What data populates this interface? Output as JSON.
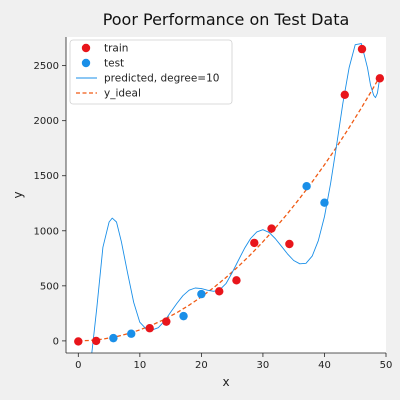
{
  "chart_data": {
    "type": "scatter",
    "title": "Poor Performance on Test Data",
    "xlabel": "x",
    "ylabel": "y",
    "xlim": [
      -2,
      50
    ],
    "ylim": [
      -110,
      2760
    ],
    "x_ticks": [
      0,
      10,
      20,
      30,
      40,
      50
    ],
    "y_ticks": [
      0,
      500,
      1000,
      1500,
      2000,
      2500
    ],
    "grid": false,
    "legend_position": "top-left",
    "series": [
      {
        "name": "train",
        "kind": "scatter",
        "color": "#e8151b",
        "x": [
          0,
          2.9,
          11.6,
          14.3,
          22.9,
          25.7,
          28.6,
          31.4,
          34.3,
          43.3,
          46.1,
          49.0
        ],
        "y": [
          -5,
          0,
          115,
          175,
          450,
          550,
          890,
          1020,
          880,
          2235,
          2650,
          2385
        ]
      },
      {
        "name": "test",
        "kind": "scatter",
        "color": "#1a8fe8",
        "x": [
          5.7,
          8.6,
          17.1,
          20.0,
          37.1,
          40.0
        ],
        "y": [
          25,
          65,
          225,
          425,
          1405,
          1255
        ]
      },
      {
        "name": "predicted, degree=10",
        "kind": "line",
        "color": "#1a8fe8",
        "x": [
          2.2,
          3.0,
          4.0,
          5.0,
          5.5,
          6.2,
          7.0,
          8.0,
          9.0,
          10.0,
          11.0,
          12.0,
          13.0,
          14.0,
          15.0,
          16.0,
          17.0,
          18.0,
          19.0,
          20.0,
          21.0,
          22.0,
          23.0,
          24.0,
          25.0,
          26.0,
          27.0,
          28.0,
          29.0,
          30.0,
          31.0,
          32.0,
          33.0,
          34.0,
          35.0,
          36.0,
          37.0,
          38.0,
          39.0,
          40.0,
          41.0,
          42.0,
          43.0,
          44.0,
          45.0,
          46.0,
          47.0,
          47.5,
          48.0,
          48.3,
          48.6,
          49.0
        ],
        "y": [
          -110,
          300,
          850,
          1080,
          1115,
          1080,
          900,
          620,
          350,
          170,
          110,
          100,
          120,
          180,
          260,
          340,
          410,
          460,
          480,
          475,
          460,
          450,
          465,
          520,
          620,
          730,
          840,
          930,
          990,
          1010,
          985,
          930,
          860,
          790,
          730,
          700,
          705,
          770,
          910,
          1130,
          1430,
          1790,
          2160,
          2480,
          2690,
          2700,
          2480,
          2320,
          2230,
          2210,
          2250,
          2390
        ]
      },
      {
        "name": "y_ideal",
        "kind": "line",
        "dashed": true,
        "color": "#f05a14",
        "x": [
          0,
          2,
          4,
          6,
          8,
          10,
          12,
          14,
          16,
          18,
          20,
          22,
          24,
          26,
          28,
          30,
          32,
          34,
          36,
          38,
          40,
          42,
          44,
          46,
          48,
          49
        ],
        "y": [
          0,
          4,
          16,
          36,
          64,
          100,
          144,
          196,
          256,
          324,
          400,
          484,
          576,
          676,
          784,
          900,
          1024,
          1156,
          1296,
          1444,
          1600,
          1764,
          1936,
          2116,
          2304,
          2401
        ]
      }
    ]
  }
}
